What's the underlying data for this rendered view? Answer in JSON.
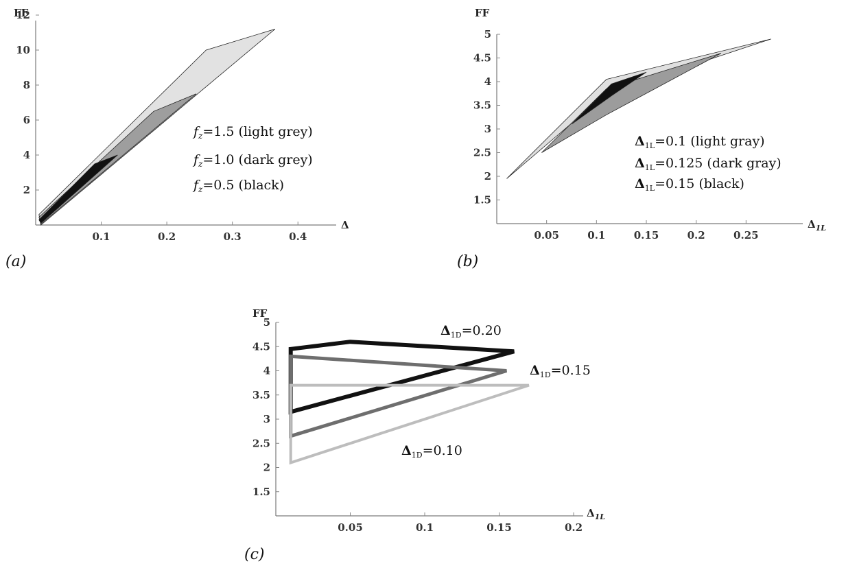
{
  "chart_data": [
    {
      "panel": "(a)",
      "type": "area",
      "ylabel": "FF",
      "xlabel": "Δ",
      "x_ticks": [
        "0.1",
        "0.2",
        "0.3",
        "0.4"
      ],
      "y_ticks": [
        "2",
        "4",
        "6",
        "8",
        "10",
        "12"
      ],
      "xlim": [
        0,
        0.45
      ],
      "ylim": [
        0,
        12
      ],
      "legend": [
        "fz=1.5 (light grey)",
        "fz=1.0 (dark grey)",
        "fz=0.5 (black)"
      ],
      "series": [
        {
          "fill": "#e2e2e2",
          "polygon": [
            [
              0.005,
              0.6
            ],
            [
              0.26,
              10.0
            ],
            [
              0.365,
              11.2
            ],
            [
              0.008,
              0.0
            ]
          ]
        },
        {
          "fill": "#9e9e9e",
          "polygon": [
            [
              0.005,
              0.45
            ],
            [
              0.18,
              6.5
            ],
            [
              0.245,
              7.5
            ],
            [
              0.008,
              0.05
            ]
          ]
        },
        {
          "fill": "#111111",
          "polygon": [
            [
              0.005,
              0.3
            ],
            [
              0.09,
              3.5
            ],
            [
              0.125,
              4.0
            ],
            [
              0.008,
              0.1
            ]
          ]
        }
      ]
    },
    {
      "panel": "(b)",
      "type": "area",
      "ylabel": "FF",
      "xlabel": "Δ1L",
      "x_ticks": [
        "0.05",
        "0.1",
        "0.15",
        "0.2",
        "0.25"
      ],
      "y_ticks": [
        "1.5",
        "2",
        "2.5",
        "3",
        "3.5",
        "4",
        "4.5",
        "5"
      ],
      "xlim": [
        0,
        0.3
      ],
      "ylim": [
        1,
        5
      ],
      "legend": [
        {
          "symbol": "Δ",
          "sub": "1L",
          "text": "=0.1 (light gray)"
        },
        {
          "symbol": "Δ",
          "sub": "1L",
          "text": "=0.125 (dark gray)"
        },
        {
          "symbol": "Δ",
          "sub": "1L",
          "text": "=0.15 (black)"
        }
      ],
      "series": [
        {
          "fill": "#e0e0e0",
          "polygon": [
            [
              0.01,
              1.95
            ],
            [
              0.11,
              4.05
            ],
            [
              0.275,
              4.9
            ],
            [
              0.11,
              3.75
            ]
          ]
        },
        {
          "fill": "#9c9c9c",
          "polygon": [
            [
              0.045,
              2.5
            ],
            [
              0.11,
              3.85
            ],
            [
              0.225,
              4.6
            ],
            [
              0.11,
              3.3
            ]
          ]
        },
        {
          "fill": "#111111",
          "polygon": [
            [
              0.075,
              3.1
            ],
            [
              0.115,
              3.95
            ],
            [
              0.15,
              4.2
            ],
            [
              0.115,
              3.7
            ]
          ]
        }
      ]
    },
    {
      "panel": "(c)",
      "type": "line",
      "ylabel": "FF",
      "xlabel": "Δ1L",
      "x_ticks": [
        "0.05",
        "0.1",
        "0.15",
        "0.2"
      ],
      "y_ticks": [
        "1.5",
        "2",
        "2.5",
        "3",
        "3.5",
        "4",
        "4.5",
        "5"
      ],
      "xlim": [
        0,
        0.2
      ],
      "ylim": [
        1,
        5
      ],
      "annotations": [
        {
          "symbol": "Δ",
          "sub": "1D",
          "text": "=0.20"
        },
        {
          "symbol": "Δ",
          "sub": "1D",
          "text": "=0.15"
        },
        {
          "symbol": "Δ",
          "sub": "1D",
          "text": "=0.10"
        }
      ],
      "series": [
        {
          "stroke": "#111111",
          "width": 6,
          "polygon": [
            [
              0.01,
              4.45
            ],
            [
              0.05,
              4.6
            ],
            [
              0.16,
              4.4
            ],
            [
              0.01,
              3.15
            ]
          ]
        },
        {
          "stroke": "#6e6e6e",
          "width": 5,
          "polygon": [
            [
              0.01,
              4.3
            ],
            [
              0.155,
              4.0
            ],
            [
              0.01,
              2.65
            ]
          ]
        },
        {
          "stroke": "#bdbdbd",
          "width": 4,
          "polygon": [
            [
              0.01,
              3.7
            ],
            [
              0.17,
              3.7
            ],
            [
              0.01,
              2.1
            ]
          ]
        }
      ]
    }
  ],
  "panel_labels": [
    "(a)",
    "(b)",
    "(c)"
  ]
}
